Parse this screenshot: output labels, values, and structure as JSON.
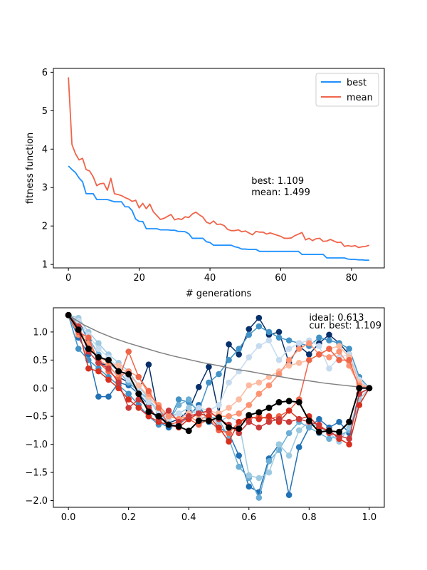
{
  "chart_data": [
    {
      "type": "line",
      "title": "",
      "xlabel": "# generations",
      "ylabel": "fitness function",
      "xlim": [
        -4.25,
        89.25
      ],
      "ylim": [
        0.91,
        6.1
      ],
      "xticks": [
        0,
        20,
        40,
        60,
        80
      ],
      "yticks": [
        1,
        2,
        3,
        4,
        5,
        6
      ],
      "xtick_labels": [
        "0",
        "20",
        "40",
        "60",
        "80"
      ],
      "ytick_labels": [
        "1",
        "2",
        "3",
        "4",
        "5",
        "6"
      ],
      "legend_position": "top-right",
      "annotation_lines": [
        "best: 1.109",
        "mean: 1.499"
      ],
      "annotation_anchor": [
        51.7,
        3.1
      ],
      "series": [
        {
          "name": "best",
          "color": "#1e90ff",
          "x": [
            0,
            1,
            2,
            3,
            4,
            5,
            6,
            7,
            8,
            9,
            10,
            11,
            12,
            13,
            14,
            15,
            16,
            17,
            18,
            19,
            20,
            21,
            22,
            23,
            24,
            25,
            26,
            27,
            28,
            29,
            30,
            31,
            32,
            33,
            34,
            35,
            36,
            37,
            38,
            39,
            40,
            41,
            42,
            43,
            44,
            45,
            46,
            47,
            48,
            49,
            50,
            51,
            52,
            53,
            54,
            55,
            56,
            57,
            58,
            59,
            60,
            61,
            62,
            63,
            64,
            65,
            66,
            67,
            68,
            69,
            70,
            71,
            72,
            73,
            74,
            75,
            76,
            77,
            78,
            79,
            80,
            81,
            82,
            83,
            84,
            85
          ],
          "values": [
            3.56,
            3.47,
            3.39,
            3.25,
            3.15,
            2.84,
            2.84,
            2.84,
            2.69,
            2.69,
            2.69,
            2.69,
            2.66,
            2.63,
            2.63,
            2.63,
            2.5,
            2.5,
            2.4,
            2.18,
            2.12,
            2.12,
            1.93,
            1.93,
            1.93,
            1.93,
            1.9,
            1.9,
            1.9,
            1.89,
            1.89,
            1.86,
            1.86,
            1.85,
            1.8,
            1.68,
            1.68,
            1.68,
            1.68,
            1.59,
            1.57,
            1.5,
            1.5,
            1.5,
            1.5,
            1.5,
            1.5,
            1.46,
            1.44,
            1.4,
            1.4,
            1.39,
            1.39,
            1.39,
            1.34,
            1.34,
            1.34,
            1.34,
            1.34,
            1.34,
            1.34,
            1.34,
            1.34,
            1.34,
            1.34,
            1.34,
            1.26,
            1.26,
            1.26,
            1.26,
            1.26,
            1.26,
            1.26,
            1.17,
            1.17,
            1.17,
            1.17,
            1.17,
            1.17,
            1.14,
            1.13,
            1.13,
            1.12,
            1.12,
            1.11,
            1.11
          ]
        },
        {
          "name": "mean",
          "color": "#f0644a",
          "x": [
            0,
            1,
            2,
            3,
            4,
            5,
            6,
            7,
            8,
            9,
            10,
            11,
            12,
            13,
            14,
            15,
            16,
            17,
            18,
            19,
            20,
            21,
            22,
            23,
            24,
            25,
            26,
            27,
            28,
            29,
            30,
            31,
            32,
            33,
            34,
            35,
            36,
            37,
            38,
            39,
            40,
            41,
            42,
            43,
            44,
            45,
            46,
            47,
            48,
            49,
            50,
            51,
            52,
            53,
            54,
            55,
            56,
            57,
            58,
            59,
            60,
            61,
            62,
            63,
            64,
            65,
            66,
            67,
            68,
            69,
            70,
            71,
            72,
            73,
            74,
            75,
            76,
            77,
            78,
            79,
            80,
            81,
            82,
            83,
            84,
            85
          ],
          "values": [
            5.87,
            4.12,
            3.88,
            3.72,
            3.76,
            3.47,
            3.43,
            3.28,
            3.05,
            3.1,
            3.11,
            2.93,
            3.24,
            2.84,
            2.82,
            2.79,
            2.74,
            2.7,
            2.64,
            2.67,
            2.47,
            2.59,
            2.45,
            2.57,
            2.37,
            2.27,
            2.17,
            2.2,
            2.25,
            2.3,
            2.16,
            2.19,
            2.17,
            2.24,
            2.22,
            2.31,
            2.36,
            2.29,
            2.23,
            2.1,
            2.06,
            2.13,
            2.04,
            2.05,
            2.01,
            1.91,
            1.88,
            1.88,
            1.9,
            1.85,
            1.87,
            1.82,
            1.77,
            1.86,
            1.84,
            1.84,
            1.79,
            1.82,
            1.79,
            1.76,
            1.73,
            1.68,
            1.68,
            1.69,
            1.75,
            1.79,
            1.83,
            1.64,
            1.68,
            1.62,
            1.67,
            1.68,
            1.6,
            1.61,
            1.65,
            1.61,
            1.57,
            1.58,
            1.47,
            1.49,
            1.47,
            1.49,
            1.44,
            1.46,
            1.47,
            1.5
          ]
        }
      ]
    },
    {
      "type": "line",
      "title": "",
      "xlabel": "",
      "ylabel": "",
      "xlim": [
        -0.05,
        1.05
      ],
      "ylim": [
        -2.12,
        1.43
      ],
      "xticks": [
        0.0,
        0.2,
        0.4,
        0.6,
        0.8,
        1.0
      ],
      "yticks": [
        -2.0,
        -1.5,
        -1.0,
        -0.5,
        0.0,
        0.5,
        1.0
      ],
      "xtick_labels": [
        "0.0",
        "0.2",
        "0.4",
        "0.6",
        "0.8",
        "1.0"
      ],
      "ytick_labels": [
        "−2.0",
        "−1.5",
        "−1.0",
        "−0.5",
        "0.0",
        "0.5",
        "1.0"
      ],
      "annotation_lines": [
        "ideal: 0.613",
        "cur. best: 1.109"
      ],
      "annotation_anchor": [
        0.8,
        1.06
      ],
      "x": [
        0.0,
        0.0333,
        0.0667,
        0.1,
        0.1333,
        0.1667,
        0.2,
        0.2333,
        0.2667,
        0.3,
        0.3333,
        0.3667,
        0.4,
        0.4333,
        0.4667,
        0.5,
        0.5333,
        0.5667,
        0.6,
        0.6333,
        0.6667,
        0.7,
        0.7333,
        0.7667,
        0.8,
        0.8333,
        0.8667,
        0.9,
        0.9333,
        0.9667,
        1.0
      ],
      "ideal_curve": {
        "name": "ideal",
        "color": "#808080",
        "x": [
          0.0,
          0.05,
          0.1,
          0.15,
          0.2,
          0.25,
          0.3,
          0.35,
          0.4,
          0.45,
          0.5,
          0.55,
          0.6,
          0.65,
          0.7,
          0.75,
          0.8,
          0.85,
          0.9,
          0.95,
          1.0
        ],
        "values": [
          1.3,
          1.13,
          1.0,
          0.89,
          0.8,
          0.72,
          0.64,
          0.57,
          0.51,
          0.45,
          0.4,
          0.34,
          0.3,
          0.25,
          0.21,
          0.16,
          0.13,
          0.09,
          0.06,
          0.03,
          0.0
        ]
      },
      "current_best": {
        "name": "cur. best",
        "color": "#000000",
        "values": [
          1.3,
          1.04,
          0.7,
          0.55,
          0.5,
          0.3,
          0.25,
          -0.1,
          -0.42,
          -0.5,
          -0.65,
          -0.68,
          -0.76,
          -0.58,
          -0.58,
          -0.52,
          -0.7,
          -0.72,
          -0.48,
          -0.43,
          -0.35,
          -0.25,
          -0.23,
          -0.25,
          -0.58,
          -0.78,
          -0.76,
          -0.78,
          -0.6,
          0.0,
          0.0
        ]
      },
      "population": [
        {
          "color": "#08306b",
          "values": [
            1.3,
            1.2,
            0.85,
            0.45,
            0.4,
            0.2,
            0.1,
            -0.05,
            0.42,
            -0.5,
            -0.62,
            -0.55,
            -0.4,
            0.02,
            0.38,
            -0.45,
            0.78,
            0.6,
            1.05,
            1.25,
            0.95,
            1.0,
            0.45,
            0.75,
            0.6,
            0.8,
            0.95,
            0.8,
            0.6,
            0.1,
            0.0
          ]
        },
        {
          "color": "#2171b5",
          "values": [
            1.3,
            0.9,
            0.6,
            -0.15,
            -0.15,
            0.1,
            0.05,
            -0.1,
            -0.3,
            -0.6,
            -0.7,
            -0.65,
            -0.5,
            -0.3,
            -0.6,
            -0.7,
            -0.8,
            -1.2,
            -1.75,
            -1.85,
            -1.25,
            -1.0,
            -1.9,
            -1.05,
            -0.7,
            -0.55,
            -0.7,
            -0.6,
            -0.8,
            -0.1,
            0.0
          ]
        },
        {
          "color": "#4292c6",
          "values": [
            1.3,
            0.7,
            0.5,
            0.35,
            0.2,
            0.05,
            -0.1,
            -0.3,
            -0.5,
            -0.65,
            -0.6,
            -0.2,
            -0.25,
            -0.4,
            0.1,
            0.25,
            0.5,
            0.7,
            0.95,
            1.1,
            1.0,
            0.9,
            0.85,
            0.8,
            0.75,
            0.9,
            0.85,
            0.8,
            0.7,
            0.2,
            0.0
          ]
        },
        {
          "color": "#6baed6",
          "values": [
            1.3,
            1.15,
            0.9,
            0.6,
            0.45,
            0.3,
            0.1,
            -0.05,
            -0.2,
            -0.45,
            -0.6,
            -0.3,
            -0.2,
            -0.45,
            -0.5,
            -0.55,
            -0.9,
            -1.4,
            -1.6,
            -1.95,
            -1.3,
            -1.1,
            -0.8,
            -0.6,
            -0.7,
            -0.8,
            -0.9,
            -0.85,
            -0.75,
            -0.3,
            0.0
          ]
        },
        {
          "color": "#9ecae1",
          "values": [
            1.3,
            1.25,
            1.0,
            0.8,
            0.6,
            0.45,
            0.3,
            0.05,
            -0.2,
            -0.4,
            -0.5,
            -0.45,
            -0.35,
            -0.5,
            -0.55,
            -0.6,
            -0.5,
            -0.6,
            -1.55,
            -1.6,
            -1.5,
            -1.0,
            -1.2,
            -0.75,
            -0.6,
            -0.7,
            -0.8,
            -0.95,
            -0.7,
            -0.2,
            0.0
          ]
        },
        {
          "color": "#c6dbef",
          "values": [
            1.3,
            1.2,
            0.95,
            0.7,
            0.55,
            0.35,
            0.15,
            -0.05,
            -0.25,
            -0.4,
            -0.55,
            -0.45,
            -0.5,
            -0.35,
            -0.4,
            -0.3,
            0.1,
            0.3,
            0.55,
            0.75,
            0.85,
            0.5,
            0.7,
            0.8,
            0.85,
            0.75,
            0.35,
            0.55,
            0.6,
            0.15,
            0.0
          ]
        },
        {
          "color": "#fcbba1",
          "values": [
            1.3,
            1.1,
            0.75,
            0.55,
            0.45,
            0.4,
            0.25,
            0.05,
            -0.15,
            -0.35,
            -0.5,
            -0.55,
            -0.45,
            -0.5,
            -0.4,
            -0.45,
            -0.35,
            -0.2,
            0.05,
            0.1,
            0.2,
            0.3,
            0.4,
            0.45,
            0.5,
            0.6,
            0.7,
            0.75,
            0.55,
            0.1,
            0.0
          ]
        },
        {
          "color": "#fc9272",
          "values": [
            1.3,
            0.95,
            0.8,
            0.5,
            0.4,
            0.2,
            0.3,
            0.2,
            -0.1,
            -0.3,
            -0.5,
            -0.55,
            -0.5,
            -0.6,
            -0.45,
            -0.5,
            -0.5,
            -0.45,
            -0.3,
            -0.1,
            0.05,
            0.25,
            0.5,
            0.7,
            0.8,
            0.6,
            0.55,
            0.65,
            0.4,
            0.05,
            0.0
          ]
        },
        {
          "color": "#ef6548",
          "values": [
            1.3,
            1.0,
            0.9,
            0.45,
            0.3,
            0.15,
            0.65,
            0.2,
            -0.05,
            -0.35,
            -0.65,
            -0.6,
            -0.55,
            -0.65,
            -0.55,
            -0.75,
            -0.8,
            -0.6,
            -0.55,
            -0.5,
            -0.55,
            -0.5,
            -0.4,
            -0.2,
            0.5,
            0.6,
            0.7,
            0.5,
            0.5,
            0.0,
            0.0
          ]
        },
        {
          "color": "#d7301f",
          "values": [
            1.3,
            1.05,
            0.35,
            0.3,
            0.15,
            0.0,
            -0.2,
            -0.35,
            -0.5,
            -0.6,
            -0.65,
            -0.7,
            -0.55,
            -0.45,
            -0.5,
            -0.7,
            -0.95,
            -0.6,
            -0.5,
            -0.55,
            -0.5,
            -0.6,
            -0.4,
            -0.55,
            -0.5,
            -0.7,
            -0.75,
            -0.9,
            -1.0,
            -0.3,
            0.0
          ]
        },
        {
          "color": "#cb3a3a",
          "values": [
            1.3,
            1.1,
            0.65,
            0.45,
            0.35,
            0.1,
            -0.35,
            -0.2,
            -0.35,
            -0.55,
            -0.4,
            -0.6,
            -0.5,
            -0.45,
            -0.4,
            -0.55,
            -0.65,
            -0.8,
            -0.6,
            -0.7,
            -0.6,
            -0.55,
            -0.6,
            -0.55,
            -0.6,
            -0.65,
            -0.8,
            -0.85,
            -0.9,
            -0.1,
            0.0
          ]
        }
      ]
    }
  ],
  "legend": {
    "items": [
      {
        "label": "best",
        "color": "#1e90ff"
      },
      {
        "label": "mean",
        "color": "#f0644a"
      }
    ]
  }
}
